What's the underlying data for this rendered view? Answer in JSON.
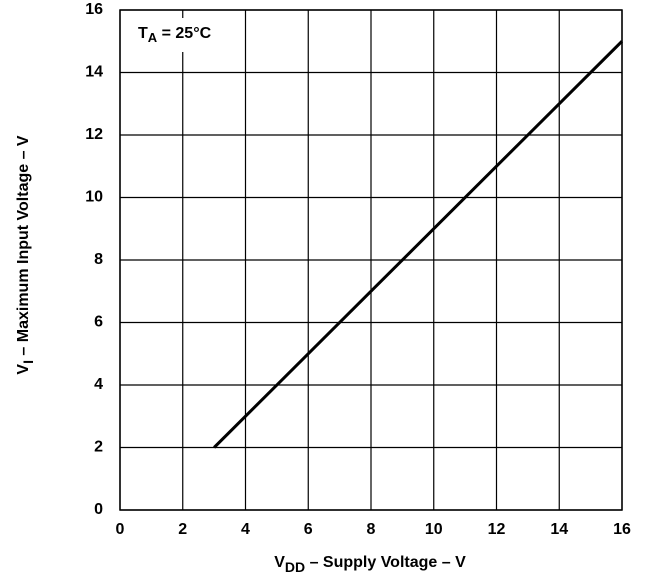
{
  "chart_data": {
    "type": "line",
    "annotation": {
      "main": "T",
      "sub": "A",
      "rest": " = 25°C"
    },
    "x_label": {
      "main": "V",
      "sub": "DD",
      "rest": " – Supply Voltage – V"
    },
    "y_label": {
      "main": "V",
      "sub": "I",
      "rest": " – Maximum Input Voltage – V"
    },
    "x": [
      3,
      16
    ],
    "series": [
      {
        "color": "#000000",
        "values": [
          2,
          15
        ]
      }
    ],
    "xlim": [
      0,
      16
    ],
    "xticks": [
      0,
      2,
      4,
      6,
      8,
      10,
      12,
      14,
      16
    ],
    "ylim": [
      0,
      16
    ],
    "yticks": [
      0,
      2,
      4,
      6,
      8,
      10,
      12,
      14,
      16
    ],
    "grid": true
  }
}
